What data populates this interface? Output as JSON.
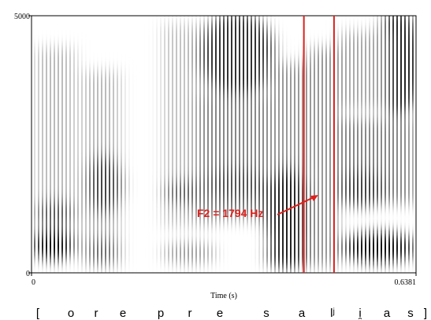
{
  "chart_data": {
    "type": "spectrogram",
    "xlabel": "Time (s)",
    "xlim": [
      0,
      0.6381
    ],
    "xticks": [
      0,
      0.6381
    ],
    "ylim": [
      0,
      5000
    ],
    "yticks": [
      0,
      5000
    ],
    "cursors": [
      0.452,
      0.502
    ],
    "cursor_color": "#e0201c",
    "annotation": "F2 = 1794 Hz",
    "segments": [
      "[",
      "o",
      "r",
      "e",
      "p",
      "r",
      "e",
      "s",
      "a",
      "lʲ",
      "i̯",
      "a",
      "s",
      "]"
    ]
  }
}
